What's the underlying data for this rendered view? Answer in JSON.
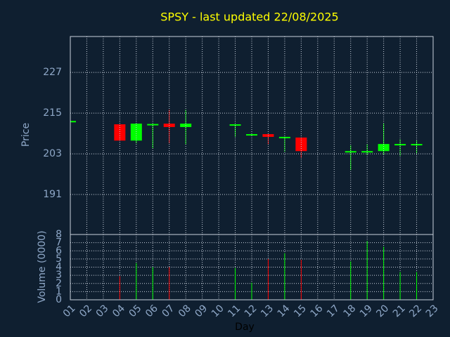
{
  "chart_data": [
    {
      "type": "candlestick",
      "title": "SPSY - last updated 22/08/2025",
      "ylabel": "Price",
      "categories": [
        "01",
        "02",
        "03",
        "04",
        "05",
        "06",
        "07",
        "08",
        "09",
        "10",
        "11",
        "12",
        "13",
        "14",
        "15",
        "16",
        "17",
        "18",
        "19",
        "20",
        "21",
        "22",
        "23"
      ],
      "open": [
        212.7,
        null,
        null,
        211.7,
        206.9,
        211.6,
        211.9,
        210.9,
        null,
        null,
        211.6,
        208.7,
        208.8,
        207.9,
        207.8,
        null,
        null,
        203.7,
        203.7,
        203.8,
        205.8,
        205.8,
        null
      ],
      "high": [
        212.7,
        null,
        null,
        211.7,
        211.9,
        211.8,
        216.0,
        216.0,
        null,
        null,
        211.7,
        208.8,
        208.8,
        208.0,
        207.8,
        null,
        null,
        205.5,
        205.9,
        211.9,
        207.3,
        206.9,
        null
      ],
      "low": [
        212.7,
        null,
        null,
        206.9,
        206.1,
        204.7,
        206.1,
        205.7,
        null,
        null,
        208.0,
        208.7,
        205.9,
        203.6,
        201.8,
        null,
        null,
        198.2,
        202.6,
        202.8,
        202.4,
        203.0,
        null
      ],
      "close": [
        212.7,
        null,
        null,
        206.9,
        211.9,
        211.8,
        210.9,
        211.9,
        null,
        null,
        211.7,
        208.8,
        208.0,
        208.0,
        203.8,
        null,
        null,
        203.8,
        203.8,
        205.9,
        205.9,
        205.9,
        null
      ],
      "ylim": [
        179.2,
        237.6
      ],
      "yticks": [
        191,
        203,
        215,
        227
      ],
      "grid": true,
      "up_color": "#00ff00",
      "down_color": "#ff0000"
    },
    {
      "type": "bar",
      "ylabel": "Volume (0000)",
      "xlabel": "Day",
      "categories": [
        "01",
        "02",
        "03",
        "04",
        "05",
        "06",
        "07",
        "08",
        "09",
        "10",
        "11",
        "12",
        "13",
        "14",
        "15",
        "16",
        "17",
        "18",
        "19",
        "20",
        "21",
        "22",
        "23"
      ],
      "values": [
        null,
        null,
        null,
        2.9,
        4.5,
        4.0,
        4.0,
        null,
        null,
        null,
        3.9,
        2.1,
        5.0,
        5.7,
        4.9,
        null,
        null,
        4.7,
        7.2,
        6.5,
        3.4,
        3.4,
        null
      ],
      "ylim": [
        0,
        8
      ],
      "yticks": [
        0,
        1,
        2,
        3,
        4,
        5,
        6,
        7,
        8
      ],
      "grid": true
    }
  ]
}
